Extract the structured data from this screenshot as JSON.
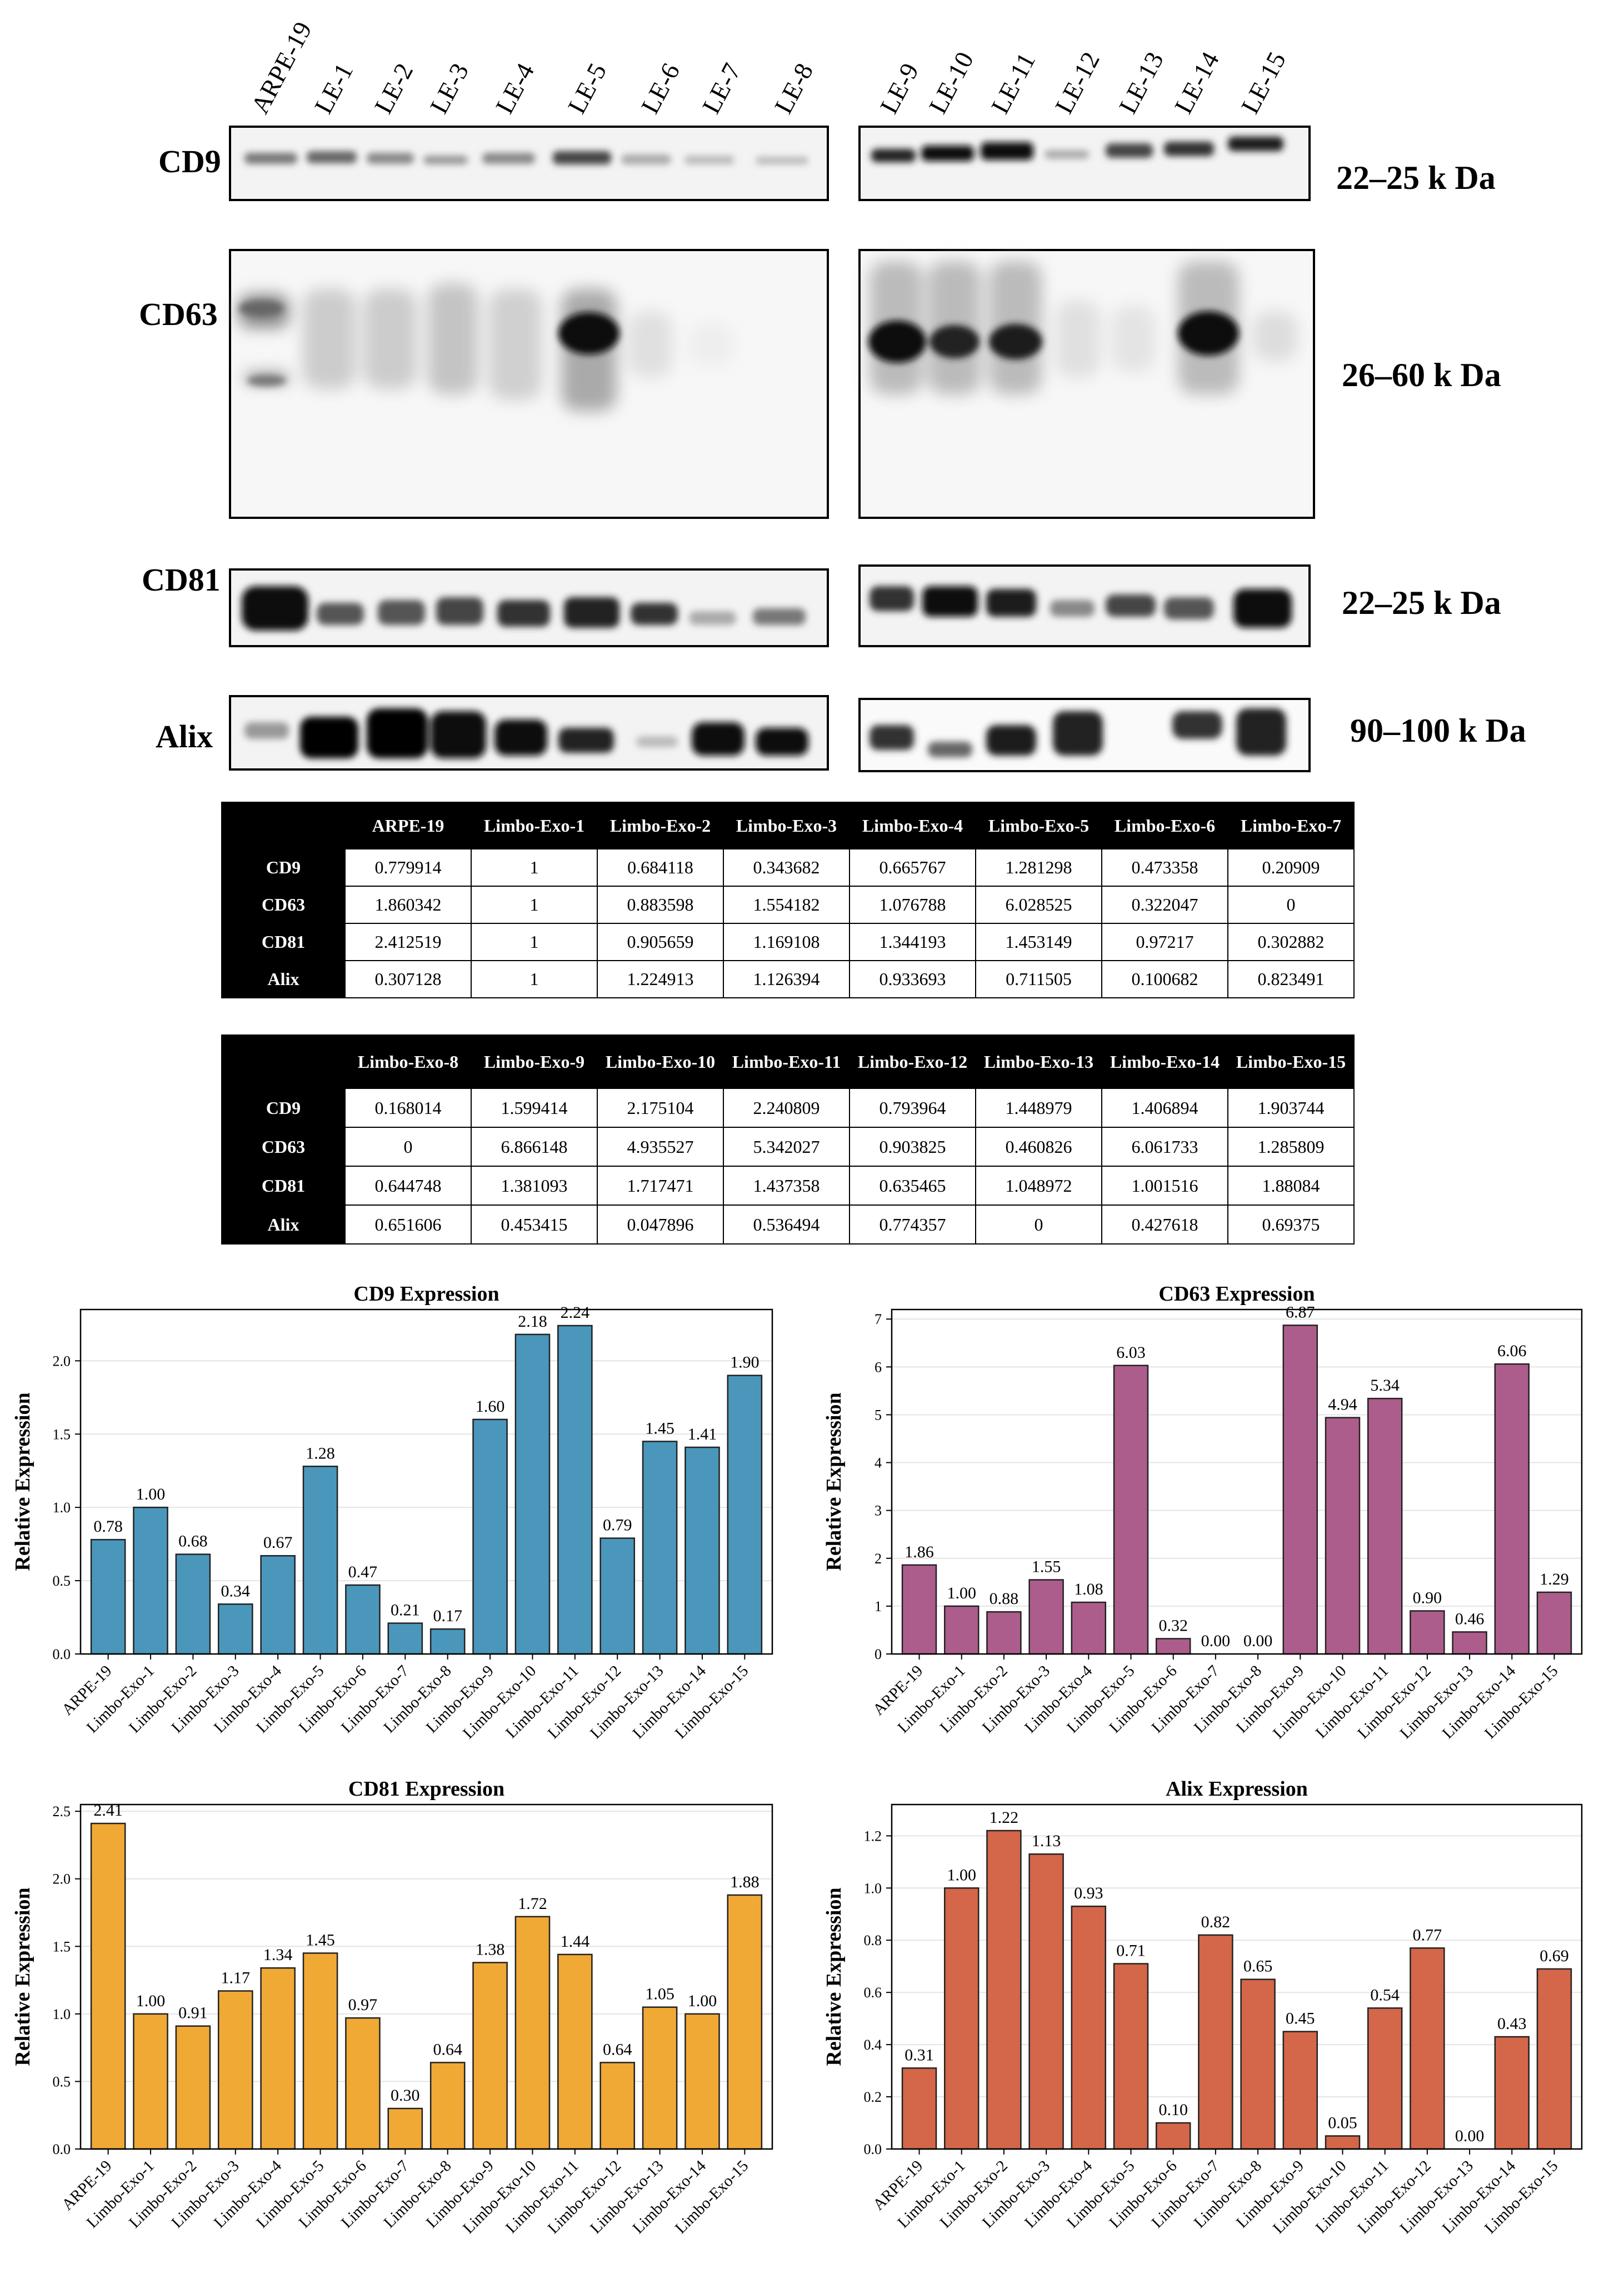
{
  "blot": {
    "lane_labels": [
      "ARPE-19",
      "LE-1",
      "LE-2",
      "LE-3",
      "LE-4",
      "LE-5",
      "LE-6",
      "LE-7",
      "LE-8",
      "LE-9",
      "LE-10",
      "LE-11",
      "LE-12",
      "LE-13",
      "LE-14",
      "LE-15"
    ],
    "markers": [
      {
        "name": "CD9",
        "size": "22–25 k Da"
      },
      {
        "name": "CD63",
        "size": "26–60 k Da"
      },
      {
        "name": "CD81",
        "size": "22–25 k Da"
      },
      {
        "name": "Alix",
        "size": "90–100 k Da"
      }
    ]
  },
  "tables": [
    {
      "columns": [
        "ARPE-19",
        "Limbo-Exo-1",
        "Limbo-Exo-2",
        "Limbo-Exo-3",
        "Limbo-Exo-4",
        "Limbo-Exo-5",
        "Limbo-Exo-6",
        "Limbo-Exo-7"
      ],
      "rows": [
        {
          "label": "CD9",
          "values": [
            "0.779914",
            "1",
            "0.684118",
            "0.343682",
            "0.665767",
            "1.281298",
            "0.473358",
            "0.20909"
          ]
        },
        {
          "label": "CD63",
          "values": [
            "1.860342",
            "1",
            "0.883598",
            "1.554182",
            "1.076788",
            "6.028525",
            "0.322047",
            "0"
          ]
        },
        {
          "label": "CD81",
          "values": [
            "2.412519",
            "1",
            "0.905659",
            "1.169108",
            "1.344193",
            "1.453149",
            "0.97217",
            "0.302882"
          ]
        },
        {
          "label": "Alix",
          "values": [
            "0.307128",
            "1",
            "1.224913",
            "1.126394",
            "0.933693",
            "0.711505",
            "0.100682",
            "0.823491"
          ]
        }
      ]
    },
    {
      "columns": [
        "Limbo-Exo-8",
        "Limbo-Exo-9",
        "Limbo-Exo-10",
        "Limbo-Exo-11",
        "Limbo-Exo-12",
        "Limbo-Exo-13",
        "Limbo-Exo-14",
        "Limbo-Exo-15"
      ],
      "rows": [
        {
          "label": "CD9",
          "values": [
            "0.168014",
            "1.599414",
            "2.175104",
            "2.240809",
            "0.793964",
            "1.448979",
            "1.406894",
            "1.903744"
          ]
        },
        {
          "label": "CD63",
          "values": [
            "0",
            "6.866148",
            "4.935527",
            "5.342027",
            "0.903825",
            "0.460826",
            "6.061733",
            "1.285809"
          ]
        },
        {
          "label": "CD81",
          "values": [
            "0.644748",
            "1.381093",
            "1.717471",
            "1.437358",
            "0.635465",
            "1.048972",
            "1.001516",
            "1.88084"
          ]
        },
        {
          "label": "Alix",
          "values": [
            "0.651606",
            "0.453415",
            "0.047896",
            "0.536494",
            "0.774357",
            "0",
            "0.427618",
            "0.69375"
          ]
        }
      ]
    }
  ],
  "chart_data": [
    {
      "type": "bar",
      "title": "CD9 Expression",
      "xlabel": "",
      "ylabel": "Relative Expression",
      "ylim": [
        0,
        2.35
      ],
      "yticks": [
        "0.0",
        "0.5",
        "1.0",
        "1.5",
        "2.0"
      ],
      "color": "#4a97bb",
      "categories": [
        "ARPE-19",
        "Limbo-Exo-1",
        "Limbo-Exo-2",
        "Limbo-Exo-3",
        "Limbo-Exo-4",
        "Limbo-Exo-5",
        "Limbo-Exo-6",
        "Limbo-Exo-7",
        "Limbo-Exo-8",
        "Limbo-Exo-9",
        "Limbo-Exo-10",
        "Limbo-Exo-11",
        "Limbo-Exo-12",
        "Limbo-Exo-13",
        "Limbo-Exo-14",
        "Limbo-Exo-15"
      ],
      "values": [
        0.78,
        1.0,
        0.68,
        0.34,
        0.67,
        1.28,
        0.47,
        0.21,
        0.17,
        1.6,
        2.18,
        2.24,
        0.79,
        1.45,
        1.41,
        1.9
      ],
      "labels": [
        "0.78",
        "1.00",
        "0.68",
        "0.34",
        "0.67",
        "1.28",
        "0.47",
        "0.21",
        "0.17",
        "1.60",
        "2.18",
        "2.24",
        "0.79",
        "1.45",
        "1.41",
        "1.90"
      ]
    },
    {
      "type": "bar",
      "title": "CD63 Expression",
      "xlabel": "",
      "ylabel": "Relative Expression",
      "ylim": [
        0,
        7.2
      ],
      "yticks": [
        "0",
        "1",
        "2",
        "3",
        "4",
        "5",
        "6",
        "7"
      ],
      "color": "#ad5d8c",
      "categories": [
        "ARPE-19",
        "Limbo-Exo-1",
        "Limbo-Exo-2",
        "Limbo-Exo-3",
        "Limbo-Exo-4",
        "Limbo-Exo-5",
        "Limbo-Exo-6",
        "Limbo-Exo-7",
        "Limbo-Exo-8",
        "Limbo-Exo-9",
        "Limbo-Exo-10",
        "Limbo-Exo-11",
        "Limbo-Exo-12",
        "Limbo-Exo-13",
        "Limbo-Exo-14",
        "Limbo-Exo-15"
      ],
      "values": [
        1.86,
        1.0,
        0.88,
        1.55,
        1.08,
        6.03,
        0.32,
        0.0,
        0.0,
        6.87,
        4.94,
        5.34,
        0.9,
        0.46,
        6.06,
        1.29
      ],
      "labels": [
        "1.86",
        "1.00",
        "0.88",
        "1.55",
        "1.08",
        "6.03",
        "0.32",
        "0.00",
        "0.00",
        "6.87",
        "4.94",
        "5.34",
        "0.90",
        "0.46",
        "6.06",
        "1.29"
      ]
    },
    {
      "type": "bar",
      "title": "CD81 Expression",
      "xlabel": "",
      "ylabel": "Relative Expression",
      "ylim": [
        0,
        2.55
      ],
      "yticks": [
        "0.0",
        "0.5",
        "1.0",
        "1.5",
        "2.0",
        "2.5"
      ],
      "color": "#f0a935",
      "categories": [
        "ARPE-19",
        "Limbo-Exo-1",
        "Limbo-Exo-2",
        "Limbo-Exo-3",
        "Limbo-Exo-4",
        "Limbo-Exo-5",
        "Limbo-Exo-6",
        "Limbo-Exo-7",
        "Limbo-Exo-8",
        "Limbo-Exo-9",
        "Limbo-Exo-10",
        "Limbo-Exo-11",
        "Limbo-Exo-12",
        "Limbo-Exo-13",
        "Limbo-Exo-14",
        "Limbo-Exo-15"
      ],
      "values": [
        2.41,
        1.0,
        0.91,
        1.17,
        1.34,
        1.45,
        0.97,
        0.3,
        0.64,
        1.38,
        1.72,
        1.44,
        0.64,
        1.05,
        1.0,
        1.88
      ],
      "labels": [
        "2.41",
        "1.00",
        "0.91",
        "1.17",
        "1.34",
        "1.45",
        "0.97",
        "0.30",
        "0.64",
        "1.38",
        "1.72",
        "1.44",
        "0.64",
        "1.05",
        "1.00",
        "1.88"
      ]
    },
    {
      "type": "bar",
      "title": "Alix Expression",
      "xlabel": "",
      "ylabel": "Relative Expression",
      "ylim": [
        0,
        1.32
      ],
      "yticks": [
        "0.0",
        "0.2",
        "0.4",
        "0.6",
        "0.8",
        "1.0",
        "1.2"
      ],
      "color": "#d46649",
      "categories": [
        "ARPE-19",
        "Limbo-Exo-1",
        "Limbo-Exo-2",
        "Limbo-Exo-3",
        "Limbo-Exo-4",
        "Limbo-Exo-5",
        "Limbo-Exo-6",
        "Limbo-Exo-7",
        "Limbo-Exo-8",
        "Limbo-Exo-9",
        "Limbo-Exo-10",
        "Limbo-Exo-11",
        "Limbo-Exo-12",
        "Limbo-Exo-13",
        "Limbo-Exo-14",
        "Limbo-Exo-15"
      ],
      "values": [
        0.31,
        1.0,
        1.22,
        1.13,
        0.93,
        0.71,
        0.1,
        0.82,
        0.65,
        0.45,
        0.05,
        0.54,
        0.77,
        0.0,
        0.43,
        0.69
      ],
      "labels": [
        "0.31",
        "1.00",
        "1.22",
        "1.13",
        "0.93",
        "0.71",
        "0.10",
        "0.82",
        "0.65",
        "0.45",
        "0.05",
        "0.54",
        "0.77",
        "0.00",
        "0.43",
        "0.69"
      ]
    }
  ]
}
